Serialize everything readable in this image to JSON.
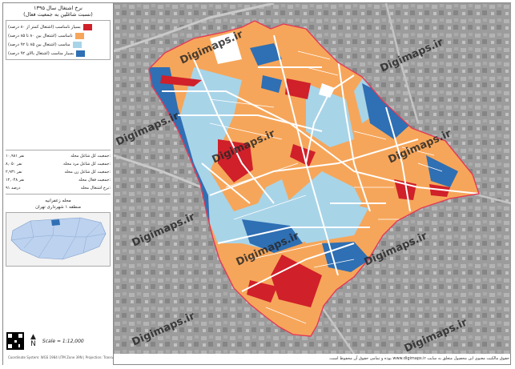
{
  "panel": {
    "title_line1": "نرخ اشتغال سال ۱۳۹۵",
    "title_line2": "(نسبت شاغلین به جمعیت فعال)",
    "legend": [
      {
        "label": "بسیار نامناسب (اشتغال کمتر از ۸۰ درصد)",
        "color": "#d0202a"
      },
      {
        "label": "نامناسب (اشتغال بین ۸۰ تا ۸۵ درصد)",
        "color": "#f6a65a"
      },
      {
        "label": "مناسب (اشتغال بین ۸۵ تا ۹۲ درصد)",
        "color": "#a8d4e8"
      },
      {
        "label": "بسیار مناسب (اشتغال بالای ۹۲ درصد)",
        "color": "#2f6fb3"
      }
    ],
    "stats": [
      {
        "label": "جمعیت کل شاغل محله:",
        "value": "۱۰,۹۸۱ نفر"
      },
      {
        "label": "جمعیت کل شاغل مرد محله:",
        "value": "۸,۰۵۰ نفر"
      },
      {
        "label": "جمعیت کل شاغل زن محله:",
        "value": "۲,۹۳۱ نفر"
      },
      {
        "label": "جمعیت فعال محله:",
        "value": "۱۲,۰۴۸ نفر"
      },
      {
        "label": "نرخ اشتغال محله:",
        "value": "۹۱ درصد"
      }
    ],
    "location_line1": "محله زعفرانیه",
    "location_line2": "منطقه ۱ شهرداری تهران",
    "scale": "Scale = 1:12,000",
    "north": "N",
    "footer": "Coordinate System: WGS 1984 UTM Zone 39N | Projection: Transverse Mercator"
  },
  "map": {
    "watermark": "Digimaps.ir",
    "copyright": "حقوق مالکیت معنوی این محصول متعلق به سایت www.digimaps.ir بوده و تمامی حقوق آن محفوظ است."
  }
}
